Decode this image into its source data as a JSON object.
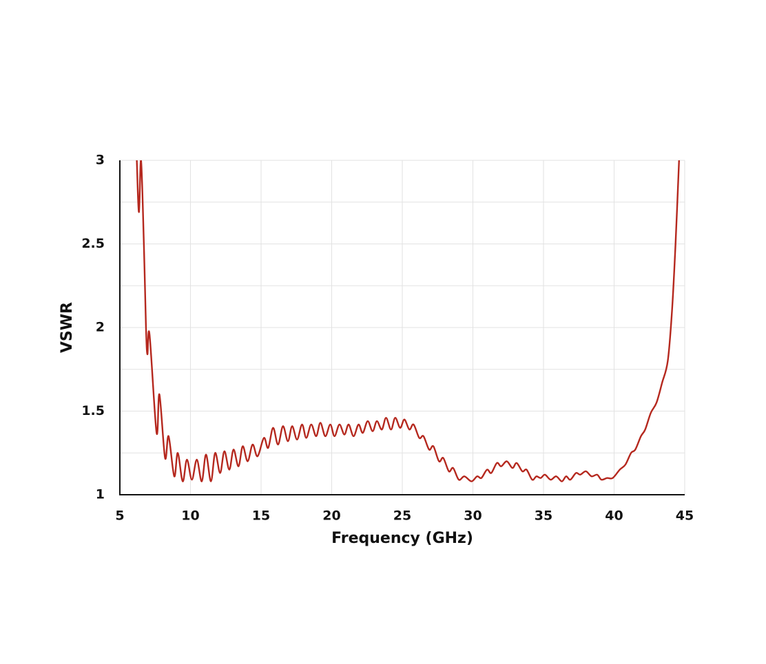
{
  "chart_data": {
    "type": "line",
    "x_label": "Frequency  (GHz)",
    "y_label": "VSWR",
    "xlim": [
      5,
      45
    ],
    "xticks": [
      5,
      10,
      15,
      20,
      25,
      30,
      35,
      40,
      45
    ],
    "ylim": [
      1,
      3
    ],
    "yticks": [
      1,
      1.5,
      2,
      2.5,
      3
    ],
    "yminorticks": [
      1.25,
      1.75,
      2.25,
      2.75
    ],
    "grid": true,
    "series": [
      {
        "color": "#b5281e",
        "x": [
          6.2,
          6.35,
          6.5,
          6.7,
          6.85,
          6.95,
          7.1,
          7.6,
          7.8,
          8.2,
          8.45,
          8.85,
          9.1,
          9.45,
          9.75,
          10.1,
          10.45,
          10.8,
          11.1,
          11.45,
          11.75,
          12.1,
          12.4,
          12.75,
          13.05,
          13.4,
          13.7,
          14.05,
          14.4,
          14.75,
          15.2,
          15.5,
          15.85,
          16.2,
          16.55,
          16.9,
          17.2,
          17.55,
          17.9,
          18.2,
          18.55,
          18.9,
          19.2,
          19.55,
          19.9,
          20.2,
          20.55,
          20.9,
          21.2,
          21.55,
          21.9,
          22.2,
          22.55,
          22.9,
          23.2,
          23.55,
          23.85,
          24.2,
          24.5,
          24.85,
          25.15,
          25.5,
          25.8,
          26.2,
          26.5,
          26.9,
          27.2,
          27.6,
          27.9,
          28.3,
          28.6,
          29.0,
          29.4,
          29.9,
          30.3,
          30.6,
          31.0,
          31.3,
          31.7,
          32.0,
          32.4,
          32.8,
          33.1,
          33.5,
          33.8,
          34.2,
          34.5,
          34.8,
          35.1,
          35.5,
          35.9,
          36.3,
          36.6,
          36.9,
          37.3,
          37.6,
          38.0,
          38.4,
          38.8,
          39.1,
          39.5,
          39.9,
          40.4,
          40.8,
          41.2,
          41.5,
          41.9,
          42.2,
          42.6,
          43.0,
          43.4,
          43.8,
          44.1,
          44.35,
          44.6
        ],
        "values": [
          3.0,
          2.69,
          3.0,
          2.5,
          2.0,
          1.84,
          1.96,
          1.37,
          1.6,
          1.22,
          1.35,
          1.11,
          1.25,
          1.08,
          1.21,
          1.09,
          1.21,
          1.08,
          1.24,
          1.08,
          1.25,
          1.13,
          1.26,
          1.15,
          1.27,
          1.17,
          1.29,
          1.2,
          1.3,
          1.23,
          1.34,
          1.28,
          1.4,
          1.3,
          1.41,
          1.32,
          1.41,
          1.33,
          1.42,
          1.34,
          1.42,
          1.35,
          1.43,
          1.35,
          1.42,
          1.35,
          1.42,
          1.36,
          1.42,
          1.35,
          1.42,
          1.37,
          1.44,
          1.38,
          1.44,
          1.39,
          1.46,
          1.39,
          1.46,
          1.4,
          1.45,
          1.39,
          1.42,
          1.34,
          1.35,
          1.27,
          1.29,
          1.2,
          1.22,
          1.14,
          1.16,
          1.09,
          1.11,
          1.08,
          1.11,
          1.1,
          1.15,
          1.13,
          1.19,
          1.17,
          1.2,
          1.16,
          1.19,
          1.14,
          1.15,
          1.09,
          1.11,
          1.1,
          1.12,
          1.09,
          1.11,
          1.08,
          1.11,
          1.09,
          1.13,
          1.12,
          1.14,
          1.11,
          1.12,
          1.09,
          1.1,
          1.1,
          1.15,
          1.18,
          1.25,
          1.27,
          1.35,
          1.39,
          1.49,
          1.55,
          1.67,
          1.8,
          2.1,
          2.5,
          3.0
        ]
      }
    ]
  }
}
